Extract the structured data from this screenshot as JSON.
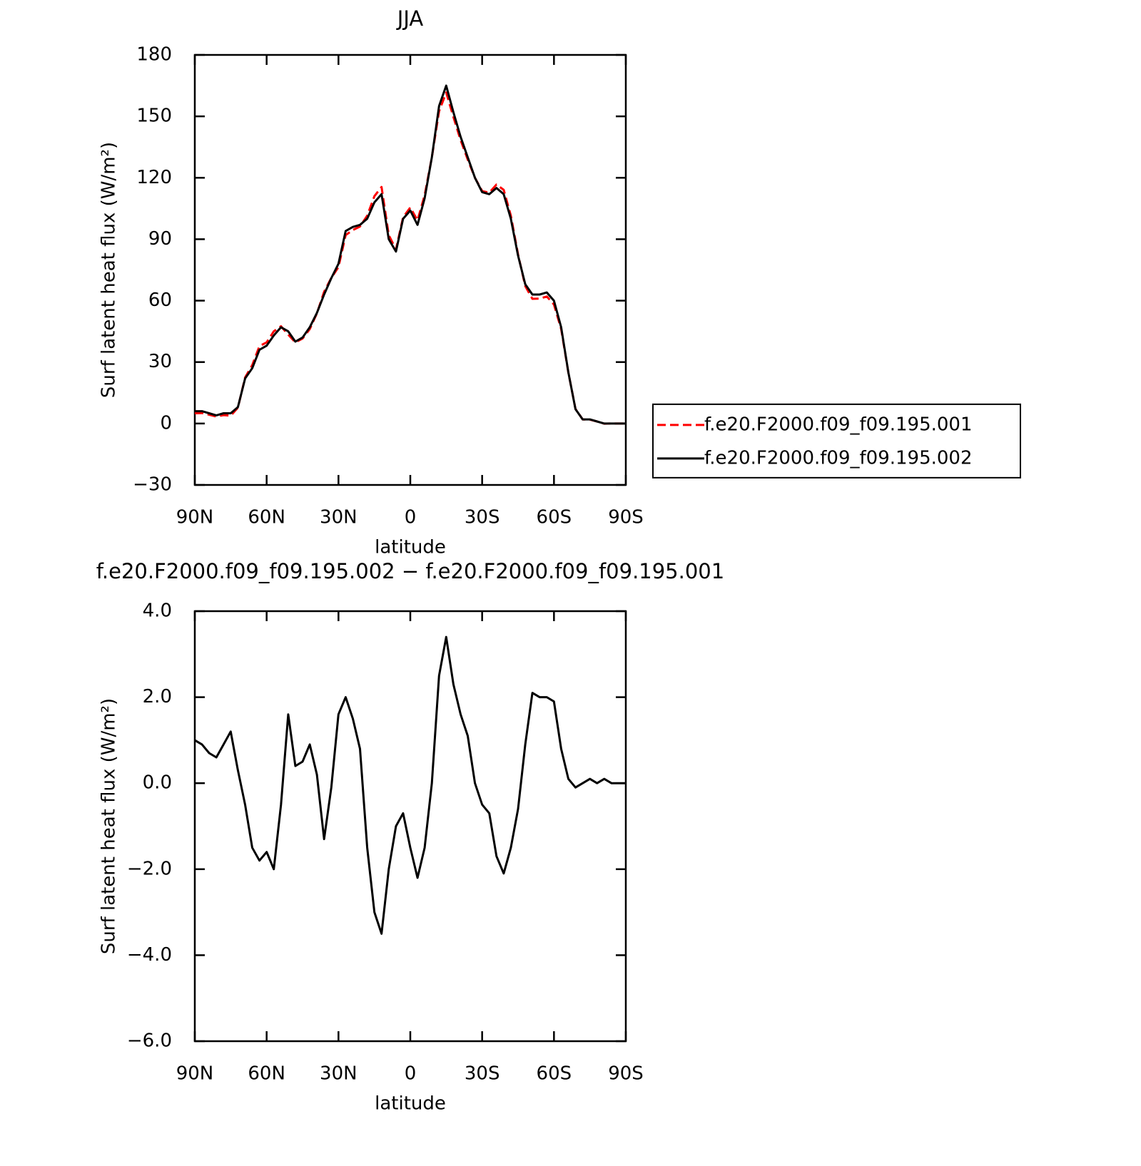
{
  "chart_data": [
    {
      "type": "line",
      "title": "JJA",
      "xlabel": "latitude",
      "ylabel": "Surf latent heat flux (W/m²)",
      "x": [
        90,
        87,
        84,
        81,
        78,
        75,
        72,
        69,
        66,
        63,
        60,
        57,
        54,
        51,
        48,
        45,
        42,
        39,
        36,
        33,
        30,
        27,
        24,
        21,
        18,
        15,
        12,
        9,
        6,
        3,
        0,
        -3,
        -6,
        -9,
        -12,
        -15,
        -18,
        -21,
        -24,
        -27,
        -30,
        -33,
        -36,
        -39,
        -42,
        -45,
        -48,
        -51,
        -54,
        -57,
        -60,
        -63,
        -66,
        -69,
        -72,
        -75,
        -78,
        -81,
        -84,
        -87,
        -90
      ],
      "series": [
        {
          "name": "f.e20.F2000.f09_f09.195.001",
          "color": "#ff0000",
          "linestyle": "dashed",
          "values": [
            5.0,
            5.1,
            4.3,
            3.4,
            4.1,
            3.8,
            7.7,
            22.5,
            28.5,
            37.8,
            39.6,
            45,
            47.5,
            43.4,
            39.6,
            41.5,
            46.1,
            53.8,
            64.3,
            71.1,
            76.4,
            92,
            94.5,
            96.2,
            101.5,
            111,
            115.5,
            92,
            85,
            100.7,
            105.5,
            99.2,
            111.5,
            130,
            152.5,
            161.6,
            149.7,
            138.4,
            128.9,
            120,
            113.5,
            112.7,
            116.7,
            114.1,
            101.5,
            82.6,
            67.1,
            60.9,
            61,
            62,
            58.1,
            46.2,
            24.9,
            7.1,
            2,
            1.9,
            1,
            -0.1,
            0,
            0,
            0
          ]
        },
        {
          "name": "f.e20.F2000.f09_f09.195.002",
          "color": "#000000",
          "linestyle": "solid",
          "values": [
            6,
            6,
            5,
            4,
            5,
            5,
            8,
            22,
            27,
            36,
            38,
            43,
            47,
            45,
            40,
            42,
            47,
            54,
            63,
            71,
            78,
            94,
            96,
            97,
            100,
            108,
            112,
            90,
            84,
            100,
            104,
            97,
            110,
            130,
            155,
            165,
            152,
            140,
            130,
            120,
            113,
            112,
            115,
            112,
            100,
            82,
            68,
            63,
            63,
            64,
            60,
            47,
            25,
            7,
            2,
            2,
            1,
            0,
            0,
            0,
            0
          ]
        }
      ],
      "xlim": [
        90,
        -90
      ],
      "xticks": [
        {
          "value": 90,
          "label": "90N"
        },
        {
          "value": 60,
          "label": "60N"
        },
        {
          "value": 30,
          "label": "30N"
        },
        0,
        {
          "value": -30,
          "label": "30S"
        },
        {
          "value": -60,
          "label": "60S"
        },
        {
          "value": -90,
          "label": "90S"
        }
      ],
      "ylim": [
        -30,
        180
      ],
      "yticks": [
        {
          "value": -30,
          "label": "−30"
        },
        0,
        30,
        60,
        90,
        120,
        150,
        180
      ],
      "legend": "right"
    },
    {
      "type": "line",
      "title": "f.e20.F2000.f09_f09.195.002 − f.e20.F2000.f09_f09.195.001",
      "xlabel": "latitude",
      "ylabel": "Surf latent heat flux (W/m²)",
      "x": [
        90,
        87,
        84,
        81,
        78,
        75,
        72,
        69,
        66,
        63,
        60,
        57,
        54,
        51,
        48,
        45,
        42,
        39,
        36,
        33,
        30,
        27,
        24,
        21,
        18,
        15,
        12,
        9,
        6,
        3,
        0,
        -3,
        -6,
        -9,
        -12,
        -15,
        -18,
        -21,
        -24,
        -27,
        -30,
        -33,
        -36,
        -39,
        -42,
        -45,
        -48,
        -51,
        -54,
        -57,
        -60,
        -63,
        -66,
        -69,
        -72,
        -75,
        -78,
        -81,
        -84,
        -87,
        -90
      ],
      "series": [
        {
          "color": "#000000",
          "linestyle": "solid",
          "values": [
            1.0,
            0.9,
            0.7,
            0.6,
            0.9,
            1.2,
            0.3,
            -0.5,
            -1.5,
            -1.8,
            -1.6,
            -2.0,
            -0.5,
            1.6,
            0.4,
            0.5,
            0.9,
            0.2,
            -1.3,
            -0.1,
            1.6,
            2.0,
            1.5,
            0.8,
            -1.5,
            -3.0,
            -3.5,
            -2.0,
            -1.0,
            -0.7,
            -1.5,
            -2.2,
            -1.5,
            0.0,
            2.5,
            3.4,
            2.3,
            1.6,
            1.1,
            0.0,
            -0.5,
            -0.7,
            -1.7,
            -2.1,
            -1.5,
            -0.6,
            0.9,
            2.1,
            2.0,
            2.0,
            1.9,
            0.8,
            0.1,
            -0.1,
            0.0,
            0.1,
            0.0,
            0.1,
            0.0,
            0.0,
            0.0
          ]
        }
      ],
      "xlim": [
        90,
        -90
      ],
      "xticks": [
        {
          "value": 90,
          "label": "90N"
        },
        {
          "value": 60,
          "label": "60N"
        },
        {
          "value": 30,
          "label": "30N"
        },
        0,
        {
          "value": -30,
          "label": "30S"
        },
        {
          "value": -60,
          "label": "60S"
        },
        {
          "value": -90,
          "label": "90S"
        }
      ],
      "ylim": [
        -6,
        4
      ],
      "yticks": [
        {
          "value": -6,
          "label": "−6.0"
        },
        {
          "value": -4,
          "label": "−4.0"
        },
        {
          "value": -2,
          "label": "−2.0"
        },
        {
          "value": 0,
          "label": "0.0"
        },
        {
          "value": 2,
          "label": "2.0"
        },
        {
          "value": 4,
          "label": "4.0"
        }
      ]
    }
  ]
}
